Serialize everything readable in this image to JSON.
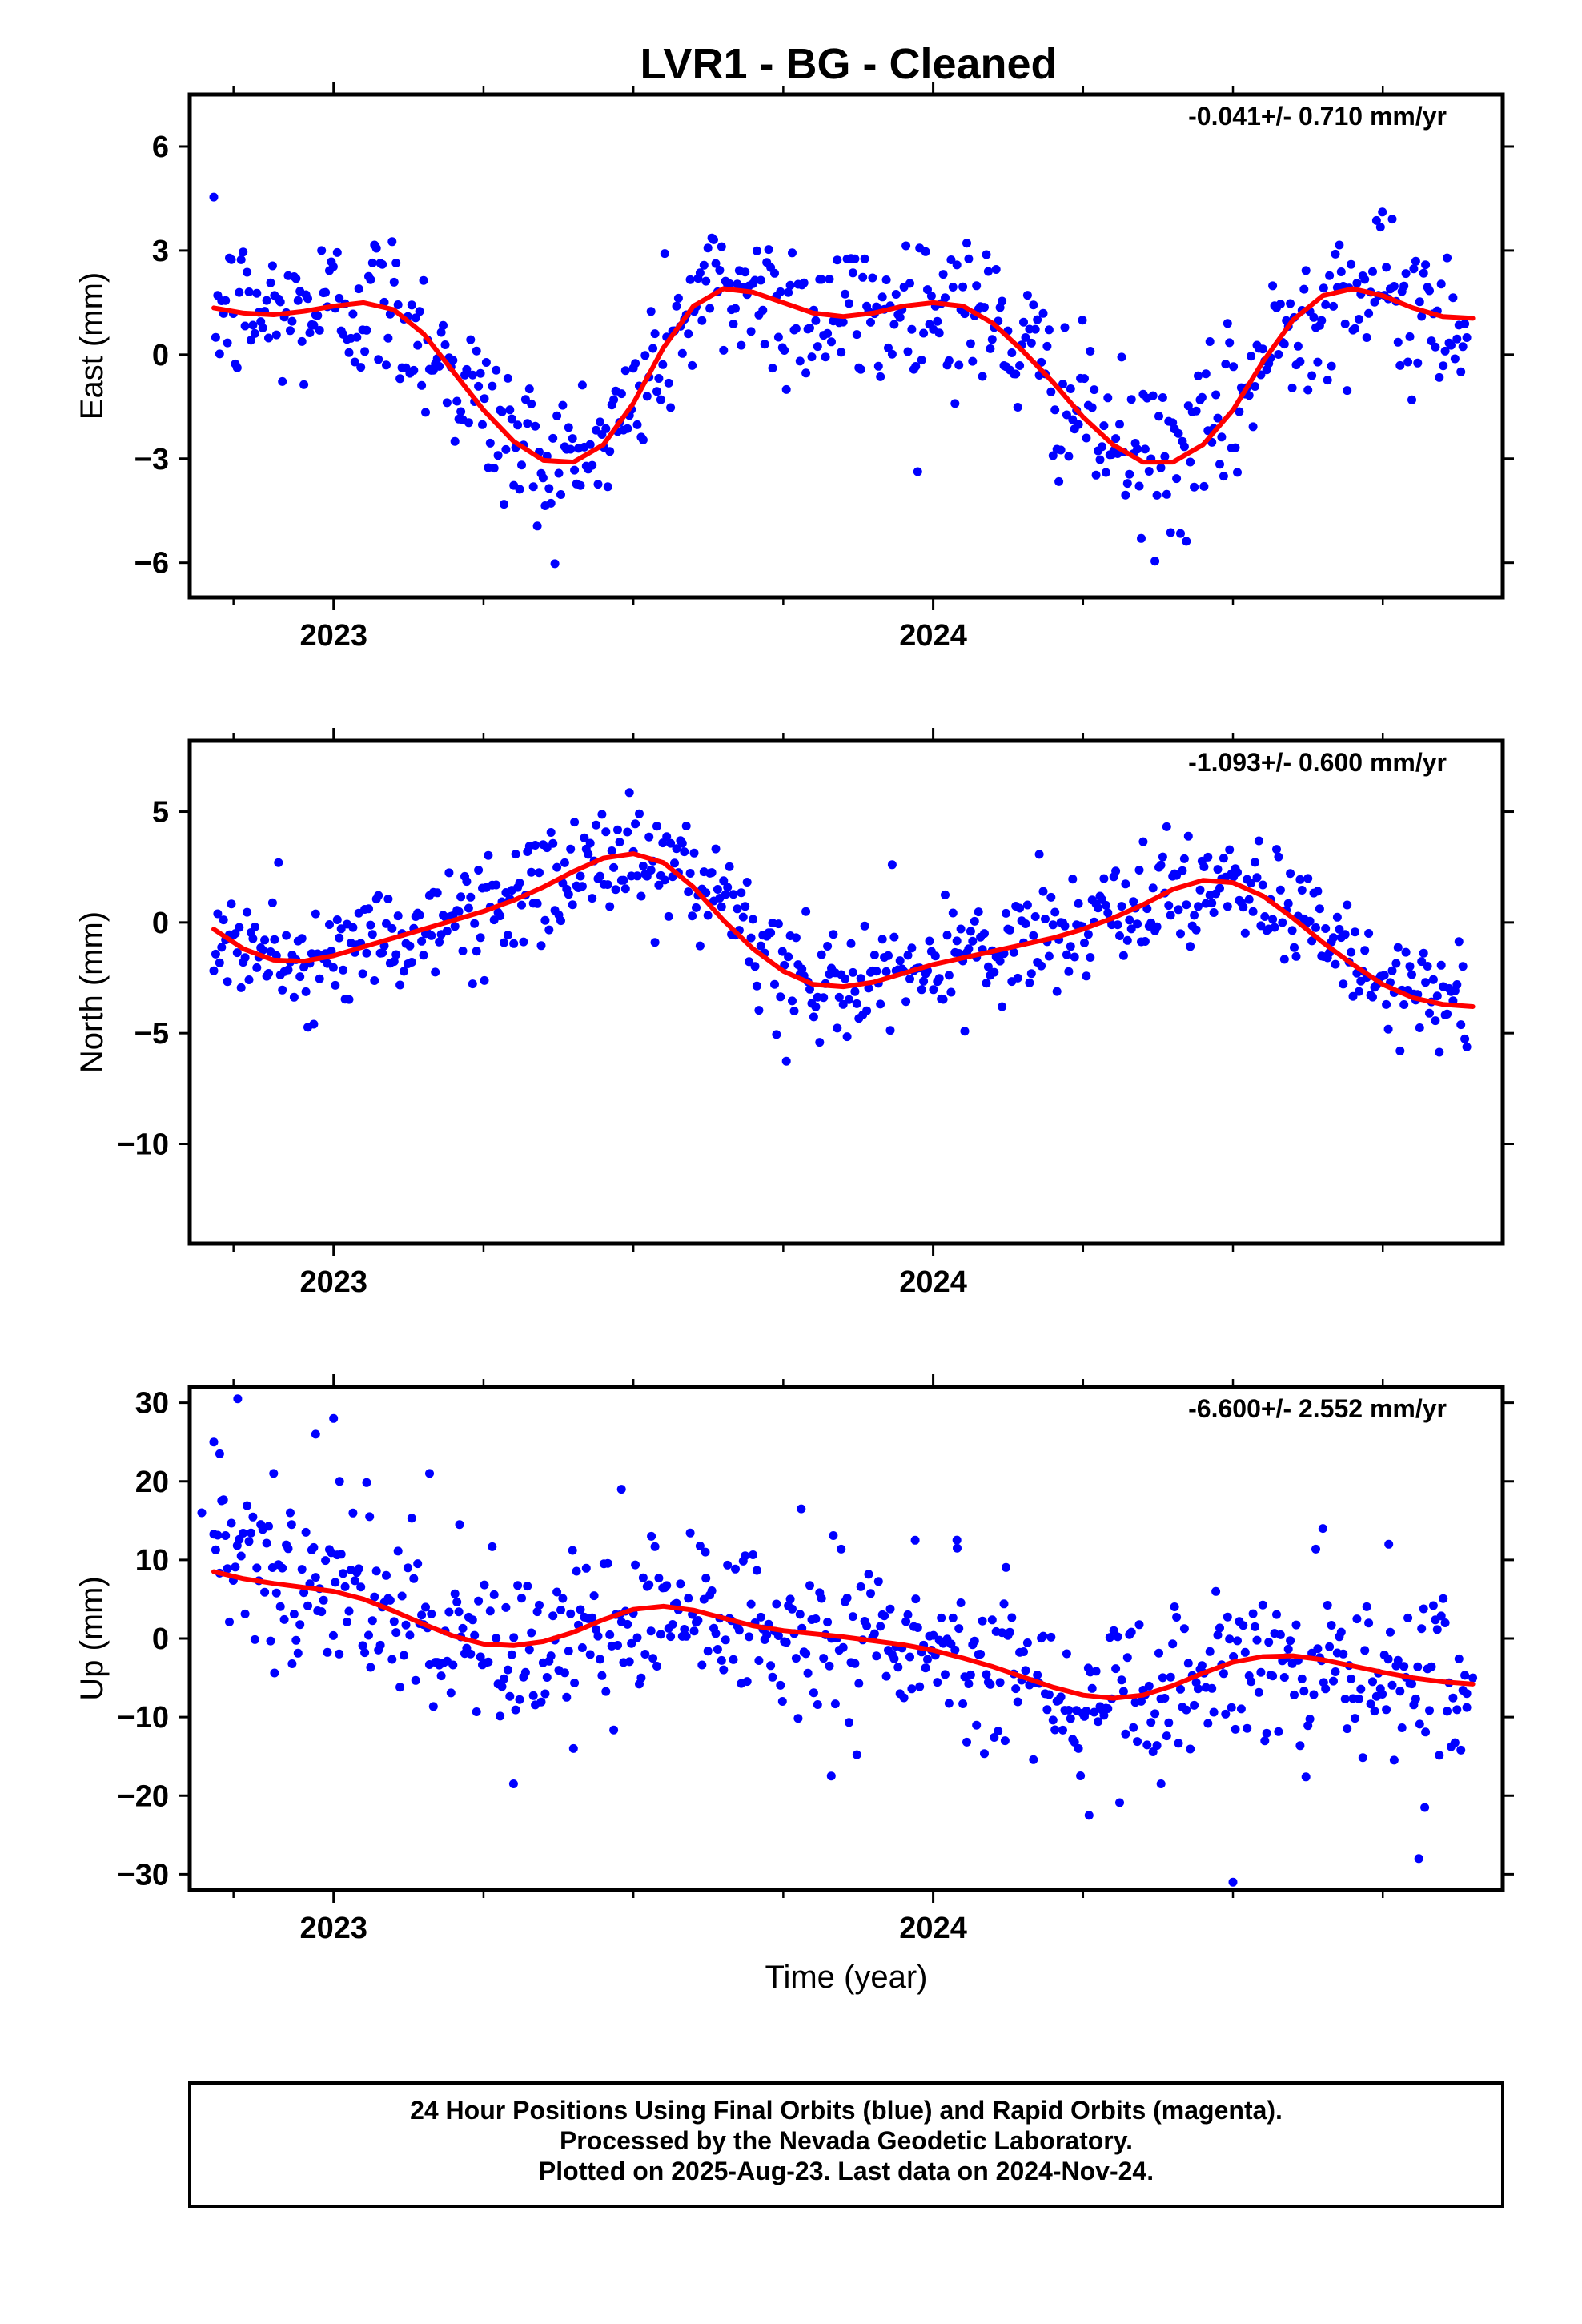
{
  "title": "LVR1  - BG - Cleaned",
  "colors": {
    "final_orbits": "#0000ff",
    "fit_curve": "#ff0000",
    "frame": "#000000"
  },
  "footer": {
    "line1": "24 Hour Positions Using Final Orbits (blue) and Rapid Orbits (magenta).",
    "line2": "Processed by the Nevada Geodetic Laboratory.",
    "line3": "Plotted on 2025-Aug-23. Last data on 2024-Nov-24."
  },
  "chart_data": [
    {
      "type": "scatter",
      "ylabel": "East (mm)",
      "xlabel": "",
      "rate_text": "-0.041+/- 0.710 mm/yr",
      "xlim": [
        2022.76,
        2024.95
      ],
      "ylim": [
        -7,
        7.5
      ],
      "xtick_labels": [
        "2023",
        "2024"
      ],
      "xtick_values": [
        2023,
        2024
      ],
      "ytick_labels": [
        "6",
        "3",
        "0",
        "−3",
        "−6"
      ],
      "ytick_values": [
        6,
        3,
        0,
        -3,
        -6
      ],
      "fit_curve": {
        "x": [
          2022.8,
          2022.85,
          2022.9,
          2022.95,
          2023.0,
          2023.05,
          2023.1,
          2023.15,
          2023.2,
          2023.25,
          2023.3,
          2023.35,
          2023.4,
          2023.45,
          2023.5,
          2023.55,
          2023.6,
          2023.65,
          2023.7,
          2023.75,
          2023.8,
          2023.85,
          2023.9,
          2023.95,
          2024.0,
          2024.05,
          2024.1,
          2024.15,
          2024.2,
          2024.25,
          2024.3,
          2024.35,
          2024.4,
          2024.45,
          2024.5,
          2024.55,
          2024.6,
          2024.65,
          2024.7,
          2024.75,
          2024.8,
          2024.85,
          2024.9
        ],
        "y": [
          1.35,
          1.2,
          1.15,
          1.25,
          1.4,
          1.5,
          1.3,
          0.6,
          -0.5,
          -1.6,
          -2.5,
          -3.05,
          -3.1,
          -2.6,
          -1.4,
          0.2,
          1.4,
          1.9,
          1.8,
          1.5,
          1.2,
          1.1,
          1.2,
          1.4,
          1.5,
          1.4,
          0.9,
          0.1,
          -0.8,
          -1.8,
          -2.6,
          -3.1,
          -3.1,
          -2.6,
          -1.6,
          -0.2,
          1.0,
          1.7,
          1.9,
          1.7,
          1.35,
          1.1,
          1.05
        ]
      }
    },
    {
      "type": "scatter",
      "ylabel": "North (mm)",
      "xlabel": "",
      "rate_text": "-1.093+/- 0.600 mm/yr",
      "xlim": [
        2022.76,
        2024.95
      ],
      "ylim": [
        -14.5,
        8.2
      ],
      "xtick_labels": [
        "2023",
        "2024"
      ],
      "xtick_values": [
        2023,
        2024
      ],
      "ytick_labels": [
        "5",
        "0",
        "−5",
        "−10"
      ],
      "ytick_values": [
        5,
        0,
        -5,
        -10
      ],
      "fit_curve": {
        "x": [
          2022.8,
          2022.85,
          2022.9,
          2022.95,
          2023.0,
          2023.05,
          2023.1,
          2023.15,
          2023.2,
          2023.25,
          2023.3,
          2023.35,
          2023.4,
          2023.45,
          2023.5,
          2023.55,
          2023.6,
          2023.65,
          2023.7,
          2023.75,
          2023.8,
          2023.85,
          2023.9,
          2023.95,
          2024.0,
          2024.05,
          2024.1,
          2024.15,
          2024.2,
          2024.25,
          2024.3,
          2024.35,
          2024.4,
          2024.45,
          2024.5,
          2024.55,
          2024.6,
          2024.65,
          2024.7,
          2024.75,
          2024.8,
          2024.85,
          2024.9
        ],
        "y": [
          -0.3,
          -1.2,
          -1.7,
          -1.75,
          -1.5,
          -1.1,
          -0.7,
          -0.3,
          0.1,
          0.5,
          1.0,
          1.6,
          2.3,
          2.9,
          3.1,
          2.7,
          1.6,
          0.1,
          -1.2,
          -2.2,
          -2.8,
          -2.9,
          -2.7,
          -2.3,
          -1.9,
          -1.6,
          -1.3,
          -1.0,
          -0.7,
          -0.3,
          0.2,
          0.8,
          1.5,
          1.9,
          1.8,
          1.2,
          0.2,
          -0.9,
          -1.9,
          -2.8,
          -3.4,
          -3.7,
          -3.8
        ]
      }
    },
    {
      "type": "scatter",
      "ylabel": "Up (mm)",
      "xlabel": "Time (year)",
      "rate_text": "-6.600+/- 2.552 mm/yr",
      "xlim": [
        2022.76,
        2024.95
      ],
      "ylim": [
        -32,
        32
      ],
      "xtick_labels": [
        "2023",
        "2024"
      ],
      "xtick_values": [
        2023,
        2024
      ],
      "ytick_labels": [
        "30",
        "20",
        "10",
        "0",
        "−10",
        "−20",
        "−30"
      ],
      "ytick_values": [
        30,
        20,
        10,
        0,
        -10,
        -20,
        -30
      ],
      "fit_curve": {
        "x": [
          2022.8,
          2022.85,
          2022.9,
          2022.95,
          2023.0,
          2023.05,
          2023.1,
          2023.15,
          2023.2,
          2023.25,
          2023.3,
          2023.35,
          2023.4,
          2023.45,
          2023.5,
          2023.55,
          2023.6,
          2023.65,
          2023.7,
          2023.75,
          2023.8,
          2023.85,
          2023.9,
          2023.95,
          2024.0,
          2024.05,
          2024.1,
          2024.15,
          2024.2,
          2024.25,
          2024.3,
          2024.35,
          2024.4,
          2024.45,
          2024.5,
          2024.55,
          2024.6,
          2024.65,
          2024.7,
          2024.75,
          2024.8,
          2024.85,
          2024.9
        ],
        "y": [
          8.5,
          7.6,
          7.0,
          6.5,
          6.0,
          5.0,
          3.5,
          1.8,
          0.3,
          -0.7,
          -0.9,
          -0.4,
          0.8,
          2.4,
          3.7,
          4.1,
          3.6,
          2.6,
          1.6,
          1.0,
          0.6,
          0.2,
          -0.3,
          -0.8,
          -1.5,
          -2.5,
          -3.6,
          -4.9,
          -6.2,
          -7.2,
          -7.6,
          -7.2,
          -6.0,
          -4.4,
          -3.0,
          -2.3,
          -2.2,
          -2.7,
          -3.5,
          -4.3,
          -5.0,
          -5.5,
          -5.8
        ]
      },
      "observations": {
        "x": [
          2022.78,
          2022.8,
          2022.81,
          2022.84,
          2022.9,
          2022.93,
          2022.97,
          2023.0,
          2023.01,
          2023.06,
          2023.16,
          2023.21,
          2023.3,
          2023.4,
          2023.48,
          2023.53,
          2023.62,
          2023.78,
          2023.83,
          2023.97,
          2024.04,
          2024.12,
          2024.26,
          2024.38,
          2024.5,
          2024.65,
          2024.76,
          2024.81,
          2024.82,
          2024.89,
          2024.9
        ],
        "y": [
          16,
          25,
          23.5,
          30.5,
          21,
          14.5,
          26,
          28,
          20,
          15.5,
          21,
          14.5,
          -18.5,
          -14,
          19,
          13,
          11,
          16.5,
          -17.5,
          12.5,
          11.5,
          -13,
          -22.5,
          -18.5,
          -31,
          14,
          12,
          -28,
          -21.5,
          -7,
          -5
        ]
      }
    }
  ]
}
